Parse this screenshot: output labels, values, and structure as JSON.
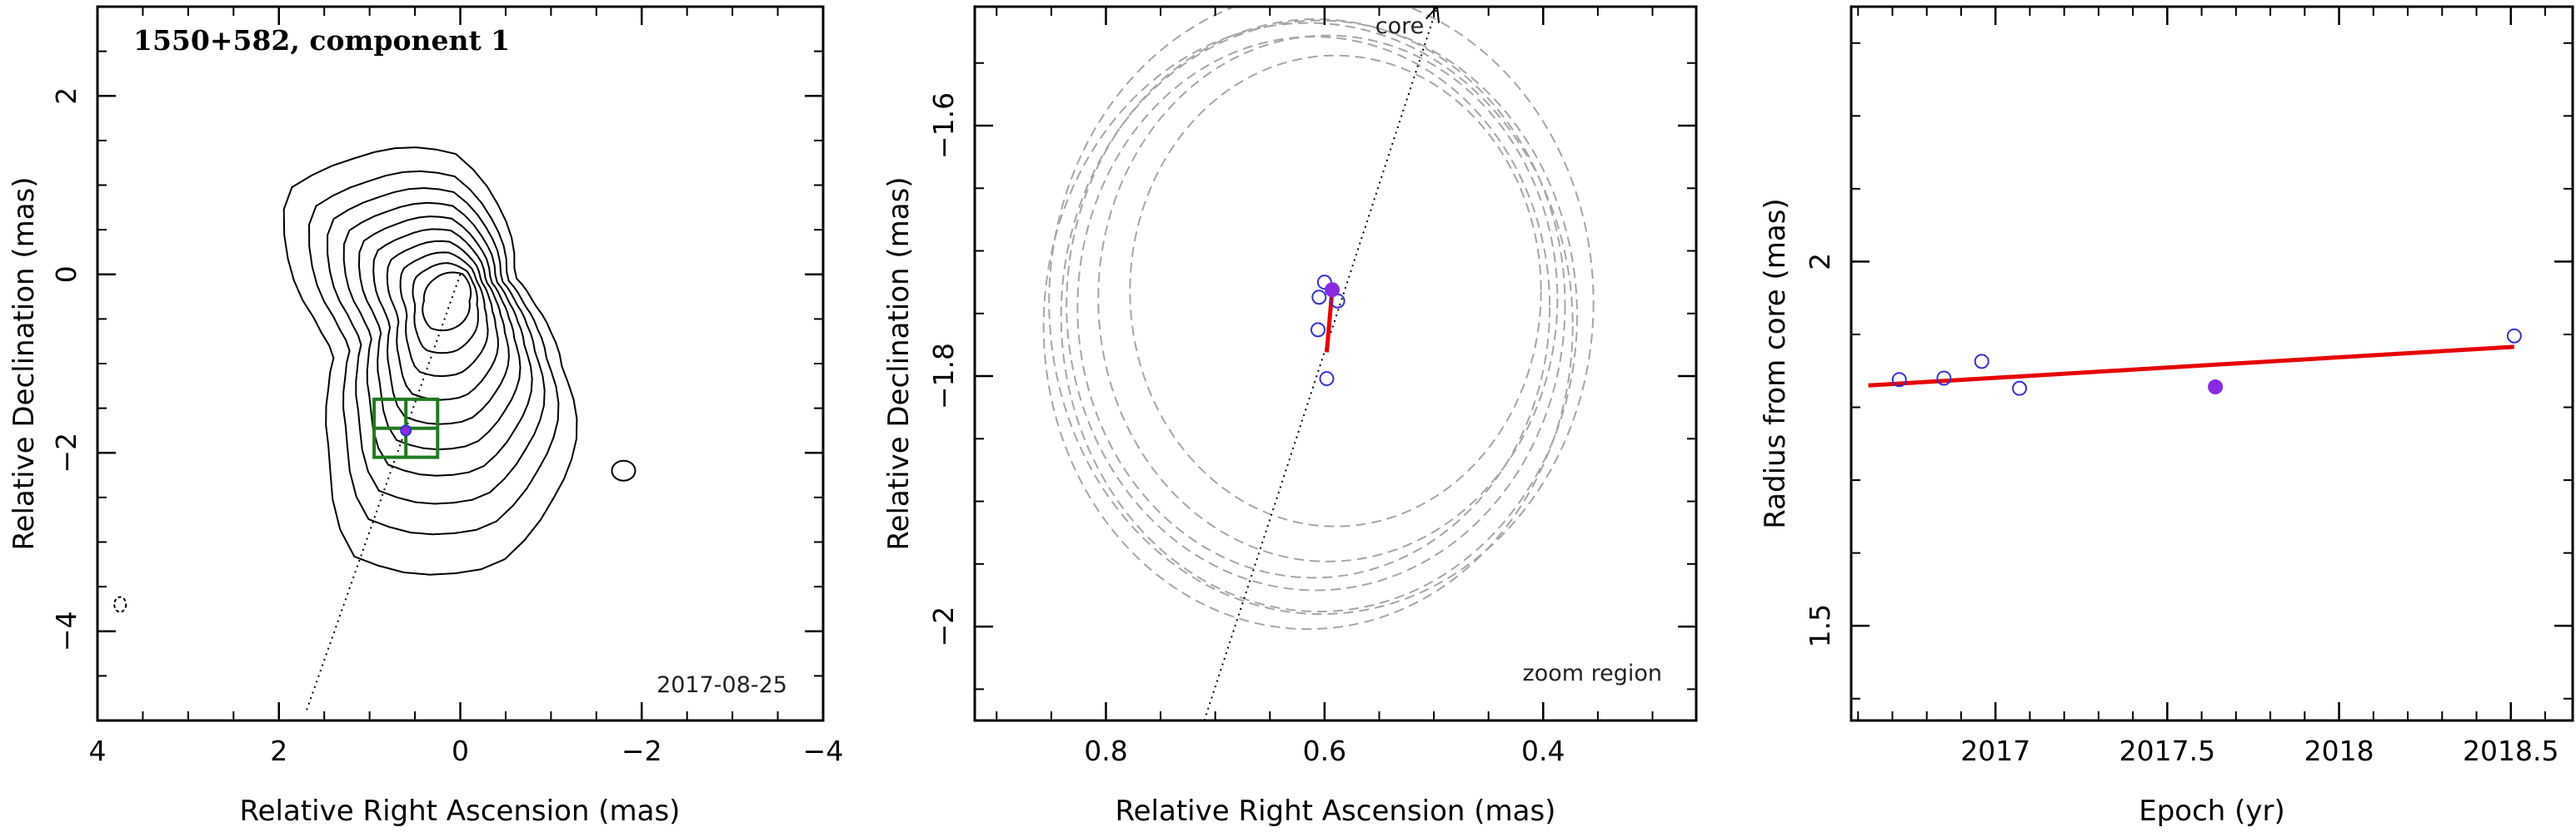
{
  "chart_data": [
    {
      "type": "contour",
      "title": "1550+582, component 1",
      "date": "2017-08-25",
      "xlabel": "Relative Right Ascension (mas)",
      "ylabel": "Relative Declination (mas)",
      "xlim": [
        4,
        -4
      ],
      "ylim": [
        -5,
        3
      ],
      "x_ticks": [
        {
          "v": 4,
          "t": "4"
        },
        {
          "v": 2,
          "t": "2"
        },
        {
          "v": 0,
          "t": "0"
        },
        {
          "v": -2,
          "t": "−2"
        },
        {
          "v": -4,
          "t": "−4"
        }
      ],
      "y_ticks": [
        {
          "v": -4,
          "t": "−4"
        },
        {
          "v": -2,
          "t": "−2"
        },
        {
          "v": 0,
          "t": "0"
        },
        {
          "v": 2,
          "t": "2"
        }
      ],
      "component": {
        "x": 0.6,
        "y": -1.75
      },
      "box": {
        "x1": 0.95,
        "x2": 0.25,
        "y1": -1.4,
        "y2": -2.05
      },
      "core_line": [
        [
          0,
          0
        ],
        [
          1.7,
          -4.9
        ]
      ],
      "contour_center": {
        "x": 0.05,
        "y": -0.3
      }
    },
    {
      "type": "scatter",
      "title": "",
      "xlabel": "Relative Right Ascension (mas)",
      "ylabel": "Relative Declination (mas)",
      "xlim": [
        0.92,
        0.26
      ],
      "ylim": [
        -2.075,
        -1.505
      ],
      "x_ticks": [
        {
          "v": 0.8,
          "t": "0.8"
        },
        {
          "v": 0.6,
          "t": "0.6"
        },
        {
          "v": 0.4,
          "t": "0.4"
        }
      ],
      "y_ticks": [
        {
          "v": -2.0,
          "t": "−2"
        },
        {
          "v": -1.8,
          "t": "−1.8"
        },
        {
          "v": -1.6,
          "t": "−1.6"
        }
      ],
      "annotations": {
        "core": "core",
        "zoom": "zoom region"
      },
      "core_line": [
        [
          0.71,
          -2.075
        ],
        [
          0.497,
          -1.505
        ]
      ],
      "points": [
        {
          "x": 0.6,
          "y": -1.725
        },
        {
          "x": 0.605,
          "y": -1.737
        },
        {
          "x": 0.588,
          "y": -1.74
        },
        {
          "x": 0.606,
          "y": -1.763
        },
        {
          "x": 0.598,
          "y": -1.802
        }
      ],
      "highlight": {
        "x": 0.593,
        "y": -1.731
      },
      "fit": [
        [
          0.593,
          -1.731
        ],
        [
          0.598,
          -1.781
        ]
      ],
      "circles": [
        {
          "x": 0.603,
          "y": -1.741,
          "r": 0.249
        },
        {
          "x": 0.608,
          "y": -1.743,
          "r": 0.228
        },
        {
          "x": 0.61,
          "y": -1.745,
          "r": 0.216
        },
        {
          "x": 0.605,
          "y": -1.752,
          "r": 0.236
        },
        {
          "x": 0.597,
          "y": -1.738,
          "r": 0.21
        },
        {
          "x": 0.59,
          "y": -1.732,
          "r": 0.188
        },
        {
          "x": 0.615,
          "y": -1.76,
          "r": 0.242
        }
      ]
    },
    {
      "type": "scatter",
      "title": "",
      "xlabel": "Epoch (yr)",
      "ylabel": "Radius from core (mas)",
      "xlim": [
        2016.58,
        2018.68
      ],
      "ylim": [
        1.37,
        2.35
      ],
      "x_ticks": [
        {
          "v": 2017,
          "t": "2017"
        },
        {
          "v": 2017.5,
          "t": "2017.5"
        },
        {
          "v": 2018,
          "t": "2018"
        },
        {
          "v": 2018.5,
          "t": "2018.5"
        }
      ],
      "y_ticks": [
        {
          "v": 1.5,
          "t": "1.5"
        },
        {
          "v": 2,
          "t": "2"
        }
      ],
      "points": [
        {
          "x": 2016.72,
          "y": 1.838
        },
        {
          "x": 2016.85,
          "y": 1.84
        },
        {
          "x": 2016.96,
          "y": 1.863
        },
        {
          "x": 2017.07,
          "y": 1.826
        },
        {
          "x": 2018.51,
          "y": 1.898
        }
      ],
      "highlight": {
        "x": 2017.64,
        "y": 1.828
      },
      "fit": [
        [
          2016.63,
          1.83
        ],
        [
          2018.51,
          1.883
        ]
      ]
    }
  ],
  "colors": {
    "axes": "#000000",
    "contour": "#000000",
    "box": "#1f7a1f",
    "point": "#3333cc",
    "highlight": "#8a2be2",
    "fit": "#e60000",
    "circle": "#a6a6a6"
  }
}
